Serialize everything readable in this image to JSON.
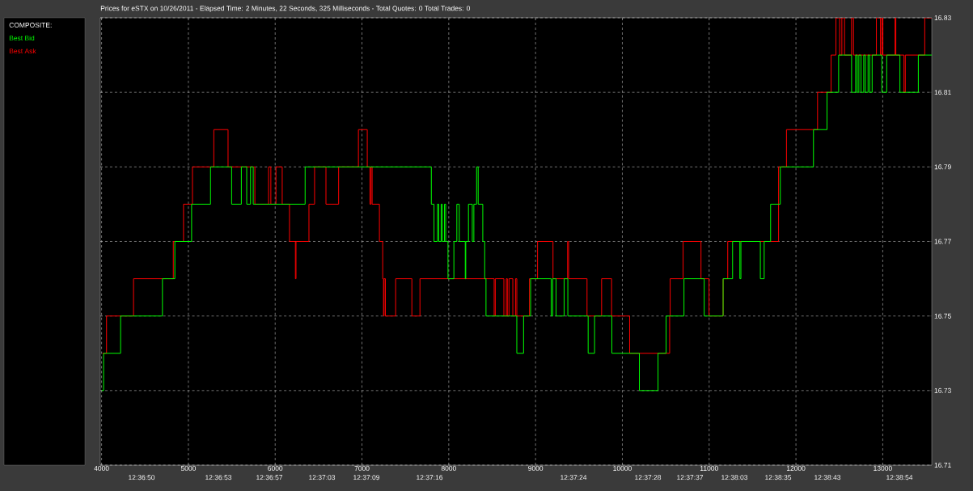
{
  "chart_data": {
    "type": "step",
    "title": "Prices for  eSTX  on  10/26/2011  -  Elapsed Time: 2 Minutes, 22 Seconds, 325 Milliseconds  -  Total Quotes: 0  Total Trades: 0",
    "legend_title": "COMPOSITE:",
    "legend": "left",
    "grid": true,
    "xlim": [
      3985,
      13565
    ],
    "xticks": [
      4000,
      5000,
      6000,
      7000,
      8000,
      9000,
      10000,
      11000,
      12000,
      13000
    ],
    "annotations": [
      "12:36:50",
      "12:36:53",
      "12:36:57",
      "12:37:03",
      "12:37:09",
      "12:37:16",
      "12:37:24",
      "12:37:28",
      "12:37:37",
      "12:38:03",
      "12:38:35",
      "12:38:43",
      "12:38:54"
    ],
    "ylim": [
      16.71,
      16.83
    ],
    "yticks": [
      16.71,
      16.73,
      16.75,
      16.77,
      16.79,
      16.81,
      16.83
    ],
    "series": [
      {
        "name": "Best Bid",
        "color": "#00ff00",
        "x": [
          4001,
          4023,
          4219,
          4701,
          4844,
          5037,
          5255,
          5498,
          5610,
          5672,
          5716,
          5747,
          6345,
          7799,
          7830,
          7870,
          7885,
          7912,
          7925,
          7950,
          7965,
          7991,
          8059,
          8093,
          8121,
          8190,
          8196,
          8227,
          8271,
          8289,
          8321,
          8339,
          8392,
          8414,
          8429,
          8784,
          8862,
          8943,
          9180,
          9198,
          9236,
          9329,
          9372,
          9606,
          9680,
          9879,
          10196,
          10411,
          10504,
          10710,
          10943,
          11161,
          11270,
          11354,
          11366,
          11590,
          11634,
          11708,
          11820,
          12202,
          12358,
          12492,
          12641,
          12688,
          12706,
          12725,
          12750,
          12781,
          12800,
          12831,
          12850,
          12878,
          12990,
          13046,
          13198,
          13410,
          13565
        ],
        "values": [
          16.73,
          16.74,
          16.75,
          16.76,
          16.77,
          16.78,
          16.79,
          16.78,
          16.79,
          16.78,
          16.79,
          16.78,
          16.79,
          16.78,
          16.77,
          16.78,
          16.77,
          16.78,
          16.77,
          16.78,
          16.77,
          16.76,
          16.77,
          16.78,
          16.77,
          16.76,
          16.77,
          16.78,
          16.77,
          16.78,
          16.79,
          16.78,
          16.77,
          16.76,
          16.75,
          16.74,
          16.75,
          16.76,
          16.75,
          16.76,
          16.75,
          16.76,
          16.75,
          16.74,
          16.75,
          16.74,
          16.73,
          16.74,
          16.75,
          16.76,
          16.75,
          16.76,
          16.77,
          16.76,
          16.77,
          16.76,
          16.77,
          16.78,
          16.79,
          16.8,
          16.81,
          16.82,
          16.81,
          16.82,
          16.81,
          16.82,
          16.81,
          16.82,
          16.81,
          16.82,
          16.81,
          16.82,
          16.81,
          16.82,
          16.81,
          16.82,
          16.82
        ]
      },
      {
        "name": "Best Ask",
        "color": "#ff0000",
        "x": [
          4010,
          4057,
          4368,
          4826,
          4944,
          5047,
          5293,
          5457,
          5766,
          5924,
          5950,
          6009,
          6081,
          6165,
          6233,
          6240,
          6389,
          6454,
          6585,
          6731,
          6959,
          7061,
          7092,
          7105,
          7117,
          7201,
          7239,
          7248,
          7255,
          7270,
          7388,
          7575,
          7668,
          8523,
          8536,
          8635,
          8663,
          8675,
          8694,
          8738,
          8769,
          8784,
          8930,
          9023,
          9201,
          9369,
          9381,
          9593,
          9761,
          9876,
          10084,
          10545,
          10551,
          10700,
          10906,
          10999,
          11161,
          11214,
          11800,
          11891,
          12249,
          12405,
          12461,
          12504,
          12529,
          12560,
          12641,
          12663,
          12927,
          12974,
          12990,
          13002,
          13142,
          13151,
          13245,
          13260,
          13484,
          13565
        ],
        "values": [
          16.74,
          16.75,
          16.76,
          16.77,
          16.78,
          16.79,
          16.8,
          16.79,
          16.78,
          16.79,
          16.78,
          16.79,
          16.78,
          16.77,
          16.76,
          16.77,
          16.78,
          16.79,
          16.78,
          16.79,
          16.8,
          16.79,
          16.78,
          16.79,
          16.78,
          16.77,
          16.76,
          16.75,
          16.76,
          16.75,
          16.76,
          16.75,
          16.76,
          16.75,
          16.76,
          16.75,
          16.76,
          16.75,
          16.76,
          16.75,
          16.76,
          16.75,
          16.76,
          16.77,
          16.76,
          16.77,
          16.76,
          16.75,
          16.76,
          16.75,
          16.74,
          16.75,
          16.76,
          16.77,
          16.76,
          16.75,
          16.76,
          16.77,
          16.79,
          16.8,
          16.81,
          16.82,
          16.83,
          16.82,
          16.83,
          16.82,
          16.83,
          16.82,
          16.83,
          16.82,
          16.83,
          16.82,
          16.83,
          16.82,
          16.81,
          16.82,
          16.83,
          16.83
        ]
      }
    ]
  }
}
